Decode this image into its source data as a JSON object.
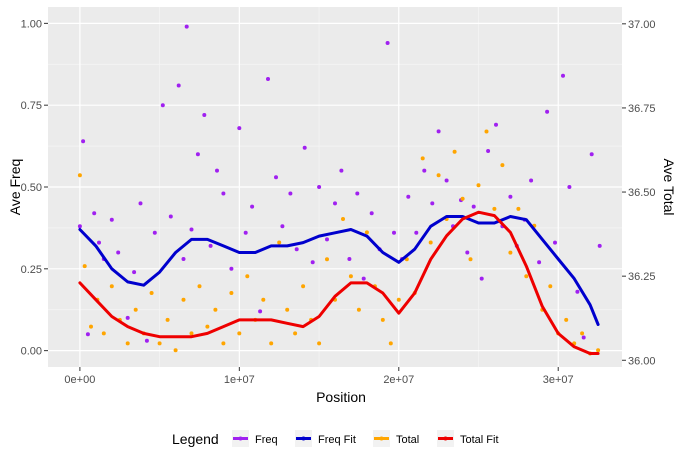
{
  "chart_data": {
    "type": "scatter",
    "xlabel": "Position",
    "ylabel": "Ave Freq",
    "y2label": "Ave Total",
    "xlim": [
      -2000000,
      34000000
    ],
    "ylim": [
      -0.05,
      1.05
    ],
    "y2lim": [
      35.98,
      37.05
    ],
    "x_ticks": [
      0,
      10000000,
      20000000,
      30000000
    ],
    "x_tick_labels": [
      "0e+00",
      "1e+07",
      "2e+07",
      "3e+07"
    ],
    "y_ticks": [
      0,
      0.25,
      0.5,
      0.75,
      1.0
    ],
    "y_tick_labels": [
      "0.00",
      "0.25",
      "0.50",
      "0.75",
      "1.00"
    ],
    "y2_ticks": [
      36.0,
      36.25,
      36.5,
      36.75,
      37.0
    ],
    "y2_tick_labels": [
      "36.00",
      "36.25",
      "36.50",
      "36.75",
      "37.00"
    ],
    "grid": true,
    "legend_position": "bottom",
    "legend_title": "Legend",
    "legend": [
      {
        "name": "Freq",
        "color": "#A020F0"
      },
      {
        "name": "Freq Fit",
        "color": "#0000CD"
      },
      {
        "name": "Total",
        "color": "#FFA500"
      },
      {
        "name": "Total Fit",
        "color": "#EE0000"
      }
    ],
    "series": [
      {
        "name": "Freq",
        "kind": "points",
        "axis": "left",
        "color": "#A020F0",
        "x": [
          0,
          200000,
          500000,
          900000,
          1200000,
          1500000,
          2000000,
          2400000,
          3000000,
          3400000,
          3800000,
          4200000,
          4700000,
          5200000,
          5700000,
          6200000,
          6500000,
          6700000,
          7000000,
          7400000,
          7800000,
          8200000,
          8600000,
          9000000,
          9500000,
          10000000,
          10400000,
          10800000,
          11300000,
          11800000,
          12300000,
          12700000,
          13200000,
          13600000,
          14100000,
          14600000,
          15000000,
          15500000,
          16000000,
          16400000,
          16900000,
          17400000,
          17800000,
          18300000,
          18800000,
          19300000,
          19700000,
          20200000,
          20600000,
          21100000,
          21600000,
          22100000,
          22500000,
          23000000,
          23400000,
          23900000,
          24300000,
          24700000,
          25200000,
          25600000,
          26100000,
          26500000,
          27000000,
          27400000,
          27900000,
          28300000,
          28800000,
          29300000,
          29800000,
          30300000,
          30700000,
          31200000,
          31600000,
          32100000,
          32600000
        ],
        "y": [
          0.38,
          0.64,
          0.05,
          0.42,
          0.33,
          0.28,
          0.4,
          0.3,
          0.1,
          0.24,
          0.45,
          0.03,
          0.36,
          0.75,
          0.41,
          0.81,
          0.28,
          0.99,
          0.37,
          0.6,
          0.72,
          0.32,
          0.55,
          0.48,
          0.25,
          0.68,
          0.36,
          0.44,
          0.12,
          0.83,
          0.53,
          0.38,
          0.48,
          0.31,
          0.62,
          0.27,
          0.5,
          0.34,
          0.45,
          0.55,
          0.28,
          0.48,
          0.22,
          0.42,
          0.31,
          0.94,
          0.36,
          0.28,
          0.47,
          0.36,
          0.55,
          0.45,
          0.67,
          0.52,
          0.38,
          0.46,
          0.3,
          0.44,
          0.22,
          0.61,
          0.69,
          0.38,
          0.47,
          0.32,
          0.4,
          0.52,
          0.27,
          0.73,
          0.33,
          0.84,
          0.5,
          0.18,
          0.04,
          0.6,
          0.32
        ]
      },
      {
        "name": "Total",
        "kind": "points",
        "axis": "right",
        "color": "#FFA500",
        "x": [
          0,
          300000,
          700000,
          1100000,
          1500000,
          2000000,
          2500000,
          3000000,
          3500000,
          4000000,
          4500000,
          5000000,
          5500000,
          6000000,
          6500000,
          7000000,
          7500000,
          8000000,
          8500000,
          9000000,
          9500000,
          10000000,
          10500000,
          11000000,
          11500000,
          12000000,
          12500000,
          13000000,
          13500000,
          14000000,
          14500000,
          15000000,
          15500000,
          16000000,
          16500000,
          17000000,
          17500000,
          18000000,
          18500000,
          19000000,
          19500000,
          20000000,
          20500000,
          21000000,
          21500000,
          22000000,
          22500000,
          23000000,
          23500000,
          24000000,
          24500000,
          25000000,
          25500000,
          26000000,
          26500000,
          27000000,
          27500000,
          28000000,
          28500000,
          29000000,
          29500000,
          30000000,
          30500000,
          31000000,
          31500000,
          32000000,
          32500000
        ],
        "y": [
          36.55,
          36.28,
          36.1,
          36.18,
          36.08,
          36.22,
          36.12,
          36.05,
          36.15,
          36.08,
          36.2,
          36.05,
          36.12,
          36.03,
          36.18,
          36.08,
          36.22,
          36.1,
          36.15,
          36.05,
          36.2,
          36.08,
          36.25,
          36.12,
          36.18,
          36.05,
          36.35,
          36.15,
          36.08,
          36.22,
          36.12,
          36.05,
          36.3,
          36.18,
          36.42,
          36.25,
          36.15,
          36.38,
          36.22,
          36.12,
          36.05,
          36.18,
          36.3,
          36.2,
          36.6,
          36.35,
          36.55,
          36.42,
          36.62,
          36.48,
          36.3,
          36.52,
          36.68,
          36.45,
          36.58,
          36.32,
          36.45,
          36.25,
          36.4,
          36.15,
          36.22,
          36.08,
          36.12,
          36.05,
          36.08,
          36.02,
          36.03
        ]
      },
      {
        "name": "Freq Fit",
        "kind": "line",
        "axis": "left",
        "color": "#0000CD",
        "x": [
          0,
          1000000,
          2000000,
          3000000,
          4000000,
          5000000,
          6000000,
          7000000,
          8000000,
          9000000,
          10000000,
          11000000,
          12000000,
          13000000,
          14000000,
          15000000,
          16000000,
          17000000,
          18000000,
          19000000,
          20000000,
          21000000,
          22000000,
          23000000,
          24000000,
          25000000,
          26000000,
          27000000,
          28000000,
          29000000,
          30000000,
          31000000,
          32000000,
          32500000
        ],
        "y": [
          0.37,
          0.32,
          0.25,
          0.21,
          0.2,
          0.24,
          0.3,
          0.34,
          0.34,
          0.32,
          0.3,
          0.3,
          0.32,
          0.32,
          0.33,
          0.35,
          0.36,
          0.37,
          0.35,
          0.3,
          0.27,
          0.31,
          0.38,
          0.41,
          0.41,
          0.39,
          0.39,
          0.41,
          0.4,
          0.34,
          0.28,
          0.22,
          0.14,
          0.08
        ]
      },
      {
        "name": "Total Fit",
        "kind": "line",
        "axis": "right",
        "color": "#EE0000",
        "x": [
          0,
          1000000,
          2000000,
          3000000,
          4000000,
          5000000,
          6000000,
          7000000,
          8000000,
          9000000,
          10000000,
          11000000,
          12000000,
          13000000,
          14000000,
          15000000,
          16000000,
          17000000,
          18000000,
          19000000,
          20000000,
          21000000,
          22000000,
          23000000,
          24000000,
          25000000,
          26000000,
          27000000,
          28000000,
          29000000,
          30000000,
          31000000,
          32000000,
          32500000
        ],
        "y": [
          36.23,
          36.18,
          36.13,
          36.1,
          36.08,
          36.07,
          36.07,
          36.07,
          36.08,
          36.1,
          36.12,
          36.12,
          36.12,
          36.11,
          36.1,
          36.13,
          36.19,
          36.23,
          36.23,
          36.2,
          36.14,
          36.2,
          36.3,
          36.37,
          36.42,
          36.44,
          36.43,
          36.38,
          36.28,
          36.16,
          36.08,
          36.04,
          36.02,
          36.02
        ]
      }
    ]
  }
}
